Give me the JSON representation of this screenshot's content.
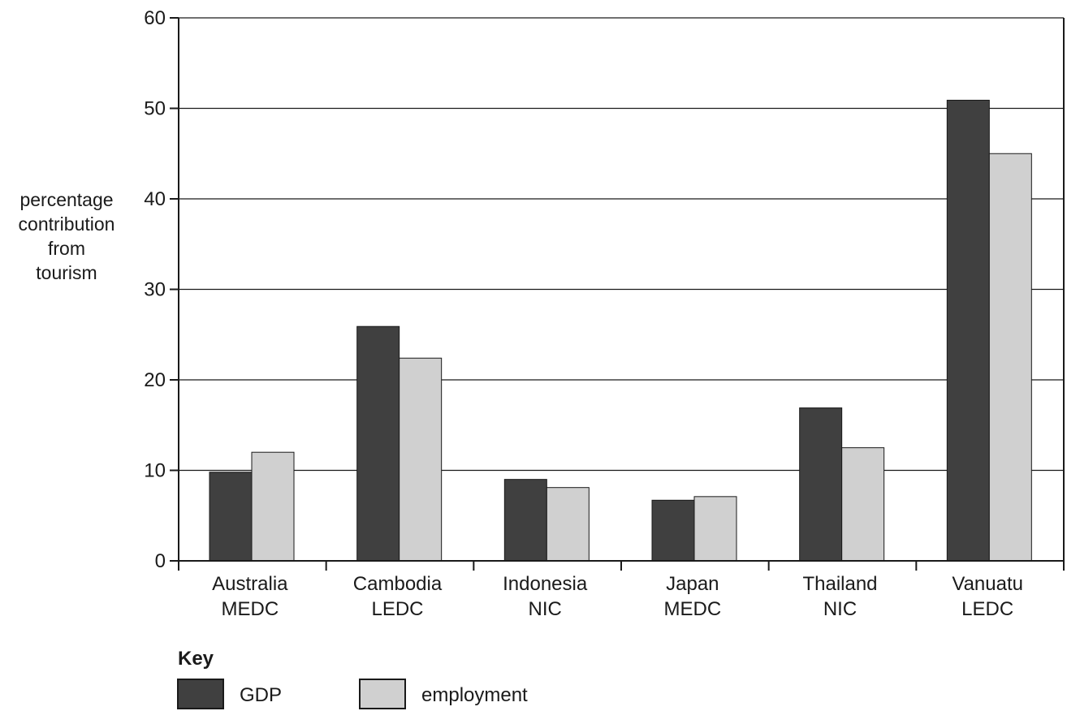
{
  "chart_data": {
    "type": "bar",
    "categories": [
      [
        "Australia",
        "MEDC"
      ],
      [
        "Cambodia",
        "LEDC"
      ],
      [
        "Indonesia",
        "NIC"
      ],
      [
        "Japan",
        "MEDC"
      ],
      [
        "Thailand",
        "NIC"
      ],
      [
        "Vanuatu",
        "LEDC"
      ]
    ],
    "series": [
      {
        "name": "GDP",
        "color": "#404040",
        "values": [
          9.8,
          25.9,
          9.0,
          6.7,
          16.9,
          50.9
        ]
      },
      {
        "name": "employment",
        "color": "#d0d0d0",
        "values": [
          12.0,
          22.4,
          8.1,
          7.1,
          12.5,
          45.0
        ]
      }
    ],
    "ylabel": [
      "percentage",
      "contribution",
      "from",
      "tourism"
    ],
    "ylim": [
      0,
      60
    ],
    "yticks": [
      0,
      10,
      20,
      30,
      40,
      50,
      60
    ],
    "grid": true,
    "legend": {
      "title": "Key",
      "placement": "bottom-left"
    }
  }
}
